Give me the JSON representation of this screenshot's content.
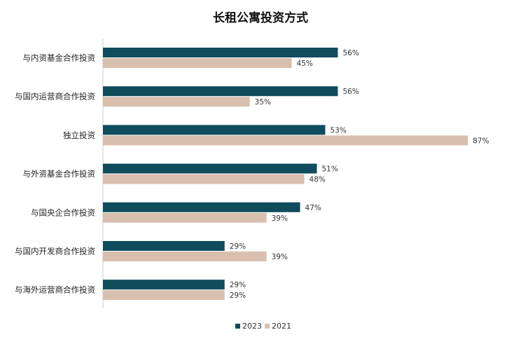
{
  "chart_data": {
    "type": "bar",
    "orientation": "horizontal",
    "title": "长租公寓投资方式",
    "categories": [
      "与内资基金合作投资",
      "与国内运营商合作投资",
      "独立投资",
      "与外资基金合作投资",
      "与国央企合作投资",
      "与国内开发商合作投资",
      "与海外运营商合作投资"
    ],
    "series": [
      {
        "name": "2023",
        "color": "#0f4c5c",
        "values": [
          56,
          56,
          53,
          51,
          47,
          29,
          29
        ],
        "labels": [
          "56%",
          "56%",
          "53%",
          "51%",
          "47%",
          "29%",
          "29%"
        ]
      },
      {
        "name": "2021",
        "color": "#d8bfae",
        "values": [
          45,
          35,
          87,
          48,
          39,
          39,
          29
        ],
        "labels": [
          "45%",
          "35%",
          "87%",
          "48%",
          "39%",
          "39%",
          "29%"
        ]
      }
    ],
    "xlim": [
      0,
      100
    ],
    "grid": false,
    "legend_position": "bottom"
  }
}
